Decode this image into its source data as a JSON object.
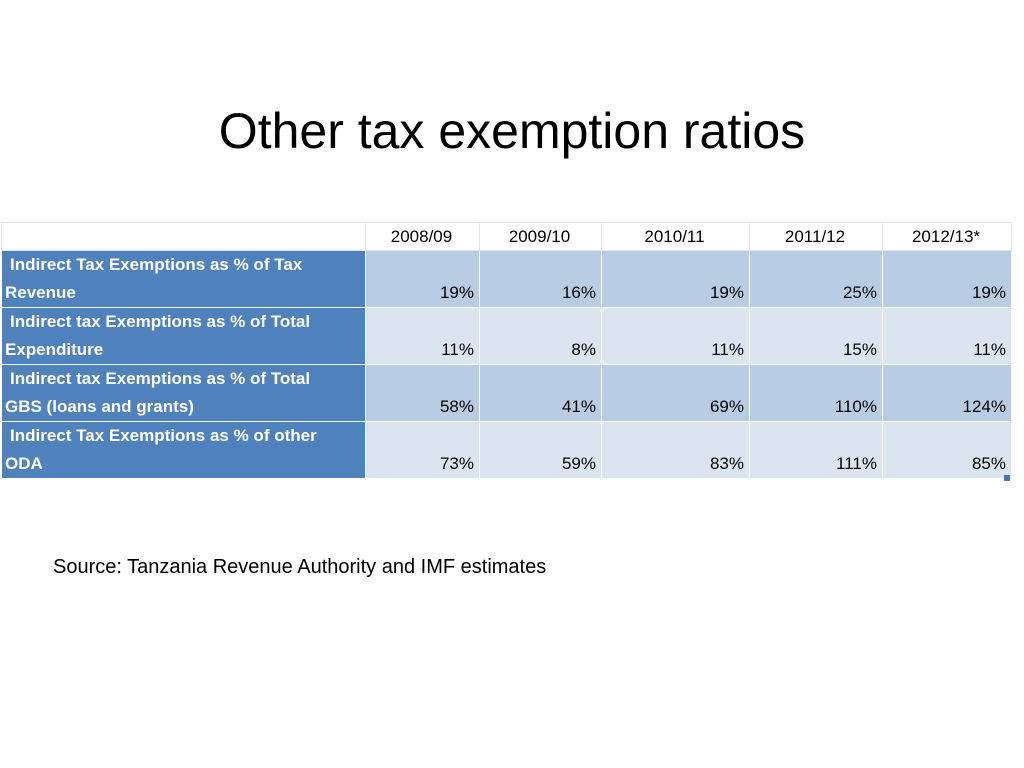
{
  "slide": {
    "title": "Other tax exemption ratios",
    "source": "Source: Tanzania Revenue Authority and IMF estimates"
  },
  "table": {
    "columns": [
      "2008/09",
      "2009/10",
      "2010/11",
      "2011/12",
      "2012/13*"
    ],
    "rows": [
      {
        "label_line1": "Indirect Tax Exemptions as % of Tax",
        "label_line2": "Revenue",
        "values": [
          "19%",
          "16%",
          "19%",
          "25%",
          "19%"
        ]
      },
      {
        "label_line1": "Indirect tax Exemptions as % of Total",
        "label_line2": "Expenditure",
        "values": [
          "11%",
          "8%",
          "11%",
          "15%",
          "11%"
        ]
      },
      {
        "label_line1": "Indirect tax Exemptions as % of Total",
        "label_line2": "GBS (loans and grants)",
        "values": [
          "58%",
          "41%",
          "69%",
          "110%",
          "124%"
        ]
      },
      {
        "label_line1": "Indirect Tax Exemptions as % of other",
        "label_line2": "ODA",
        "values": [
          "73%",
          "59%",
          "83%",
          "111%",
          "85%"
        ]
      }
    ]
  }
}
